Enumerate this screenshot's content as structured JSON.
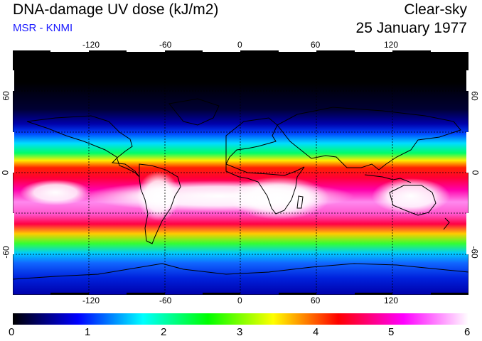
{
  "header": {
    "title": "DNA-damage UV dose (kJ/m2)",
    "source": "MSR - KNMI",
    "condition": "Clear-sky",
    "date": "25 January 1977"
  },
  "map": {
    "projection": "equirectangular",
    "lon_range": [
      -180,
      180
    ],
    "lat_range": [
      -90,
      90
    ],
    "lon_ticks": [
      "-120",
      "-60",
      "0",
      "60",
      "120"
    ],
    "lat_ticks": [
      "60",
      "0",
      "-60"
    ],
    "gridlines": "dotted"
  },
  "colorbar": {
    "min": 0,
    "max": 6,
    "labels": [
      "0",
      "1",
      "2",
      "3",
      "4",
      "5",
      "6"
    ],
    "colors": [
      "#000000",
      "#0000ff",
      "#00ffff",
      "#00ff00",
      "#ffff00",
      "#ff0000",
      "#ff00ff",
      "#ffffff"
    ]
  }
}
